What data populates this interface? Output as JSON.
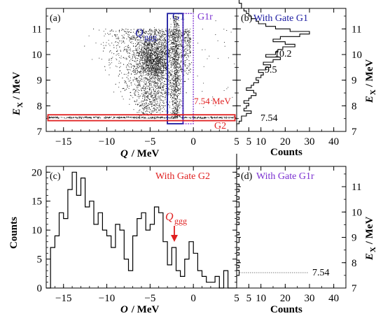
{
  "chart_data": [
    {
      "panel": "(a)",
      "type": "scatter",
      "xlabel_italic": "Q",
      "xlabel_rest": " / MeV",
      "ylabel_main": "E",
      "ylabel_sub": "X",
      "ylabel_rest": " / MeV",
      "xlim": [
        -17,
        5
      ],
      "ylim": [
        7.0,
        11.8
      ],
      "xticks": [
        "−15",
        "−10",
        "−5",
        "0",
        "5"
      ],
      "xtick_values": [
        -15,
        -10,
        -5,
        0,
        5
      ],
      "yticks": [
        "7",
        "8",
        "9",
        "10",
        "11"
      ],
      "ytick_values": [
        7,
        8,
        9,
        10,
        11
      ],
      "density_model": {
        "broad_cloud": {
          "q_range": [
            -13,
            -1
          ],
          "ex_range": [
            7.6,
            11.0
          ],
          "peak_q": -4.5,
          "peak_ex": 9.8
        },
        "ridge_qggg": {
          "q_center": -2.0,
          "ex_range": [
            7.5,
            11.5
          ]
        },
        "band_7_54": {
          "ex": 7.54,
          "q_range": [
            -17,
            5
          ]
        }
      },
      "gates": [
        {
          "name": "G1",
          "label": "G1",
          "q": [
            -3.0,
            -1.2
          ],
          "ex": [
            7.3,
            11.6
          ],
          "color": "#1a1aa0",
          "style": "solid"
        },
        {
          "name": "G1r",
          "label": "G1r",
          "q": [
            -1.2,
            0.0
          ],
          "ex": [
            7.3,
            11.6
          ],
          "color": "#7a2fd0",
          "style": "dotted"
        },
        {
          "name": "G2",
          "label": "G2",
          "q": [
            -16.8,
            4.8
          ],
          "ex": [
            7.42,
            7.65
          ],
          "color": "#e02020",
          "style": "solid"
        }
      ],
      "annotations": [
        {
          "text": "(a)",
          "color": "#000000"
        },
        {
          "text_main": "Q",
          "text_sub": "ggg",
          "color": "#1a1aa0"
        },
        {
          "text": "7.54 MeV",
          "color": "#e02020"
        }
      ]
    },
    {
      "panel": "(b)",
      "type": "histogram",
      "orientation": "horizontal",
      "title": "With Gate G1",
      "title_color": "#1a1aa0",
      "xlabel": "Counts",
      "xlim": [
        0,
        45
      ],
      "xticks": [
        "5",
        "10",
        "20",
        "30",
        "40"
      ],
      "xtick_values": [
        5,
        10,
        20,
        30,
        40
      ],
      "ylim": [
        7.0,
        11.8
      ],
      "yticks": [
        "7",
        "8",
        "9",
        "10",
        "11"
      ],
      "ytick_values": [
        7,
        8,
        9,
        10,
        11
      ],
      "ylabel_main": "E",
      "ylabel_sub": "X",
      "ylabel_rest": " / MeV",
      "bin_width": 0.1,
      "ex_bin_start": 7.2,
      "counts": [
        0,
        1,
        2,
        2,
        4,
        6,
        3,
        4,
        5,
        3,
        5,
        6,
        8,
        7,
        4,
        6,
        7,
        9,
        8,
        10,
        11,
        9,
        12,
        14,
        11,
        15,
        18,
        12,
        16,
        17,
        19,
        24,
        20,
        15,
        18,
        26,
        30,
        22,
        16,
        12,
        9,
        8,
        6,
        5,
        4,
        3,
        2,
        2,
        1,
        1,
        0
      ],
      "annotations": [
        {
          "text": "10.2",
          "ex": 10.2
        },
        {
          "text": "9.5",
          "ex": 9.5
        },
        {
          "text": "7.54",
          "ex": 7.54
        }
      ]
    },
    {
      "panel": "(c)",
      "type": "histogram",
      "title": "With Gate G2",
      "title_color": "#e02020",
      "ylabel": "Counts",
      "xlabel_italic": "O",
      "xlabel_rest": " / MeV",
      "xlim": [
        -17,
        5
      ],
      "xticks": [
        "−15",
        "−10",
        "−5",
        "0",
        "5"
      ],
      "xtick_values": [
        -15,
        -10,
        -5,
        0,
        5
      ],
      "ylim": [
        0,
        21
      ],
      "yticks": [
        "0",
        "5",
        "10",
        "15",
        "20"
      ],
      "ytick_values": [
        0,
        5,
        10,
        15,
        20
      ],
      "bin_width": 0.5,
      "q_bin_start": -17,
      "counts": [
        0,
        7,
        9,
        13,
        12,
        17,
        20,
        16,
        19,
        14,
        15,
        11,
        13,
        10,
        9,
        7,
        11,
        10,
        5,
        3,
        9,
        12,
        13,
        10,
        11,
        14,
        13,
        8,
        4,
        7,
        3,
        2,
        5,
        8,
        6,
        3,
        2,
        1,
        1,
        2,
        0,
        3,
        0,
        0
      ],
      "annotations": [
        {
          "text_main": "Q",
          "text_sub": "ggg",
          "q": -2.0,
          "color": "#e02020"
        },
        {
          "text": "(c)",
          "color": "#000000"
        }
      ]
    },
    {
      "panel": "(d)",
      "type": "histogram",
      "orientation": "horizontal",
      "title": "With Gate G1r",
      "title_color": "#7a2fd0",
      "xlabel": "Counts",
      "xlim": [
        0,
        45
      ],
      "xticks": [
        "5",
        "10",
        "20",
        "30",
        "40"
      ],
      "xtick_values": [
        5,
        10,
        20,
        30,
        40
      ],
      "ylim": [
        7.0,
        11.8
      ],
      "yticks": [
        "7",
        "8",
        "9",
        "10",
        "11"
      ],
      "ytick_values": [
        7,
        8,
        9,
        10,
        11
      ],
      "ylabel_main": "E",
      "ylabel_sub": "X",
      "ylabel_rest": " / MeV",
      "bin_width": 0.1,
      "ex_bin_start": 7.2,
      "counts": [
        0,
        0,
        0,
        1,
        1,
        0,
        1,
        0,
        1,
        0,
        0,
        1,
        0,
        1,
        0,
        0,
        1,
        1,
        0,
        1,
        0,
        0,
        0,
        1,
        0,
        1,
        0,
        1,
        0,
        0,
        1,
        1,
        0,
        1,
        0,
        0,
        1,
        0,
        1,
        0,
        0,
        0,
        1,
        0,
        0,
        1,
        0,
        0,
        0,
        0,
        0
      ],
      "annotations": [
        {
          "text": "7.54",
          "ex": 7.54
        }
      ]
    }
  ]
}
